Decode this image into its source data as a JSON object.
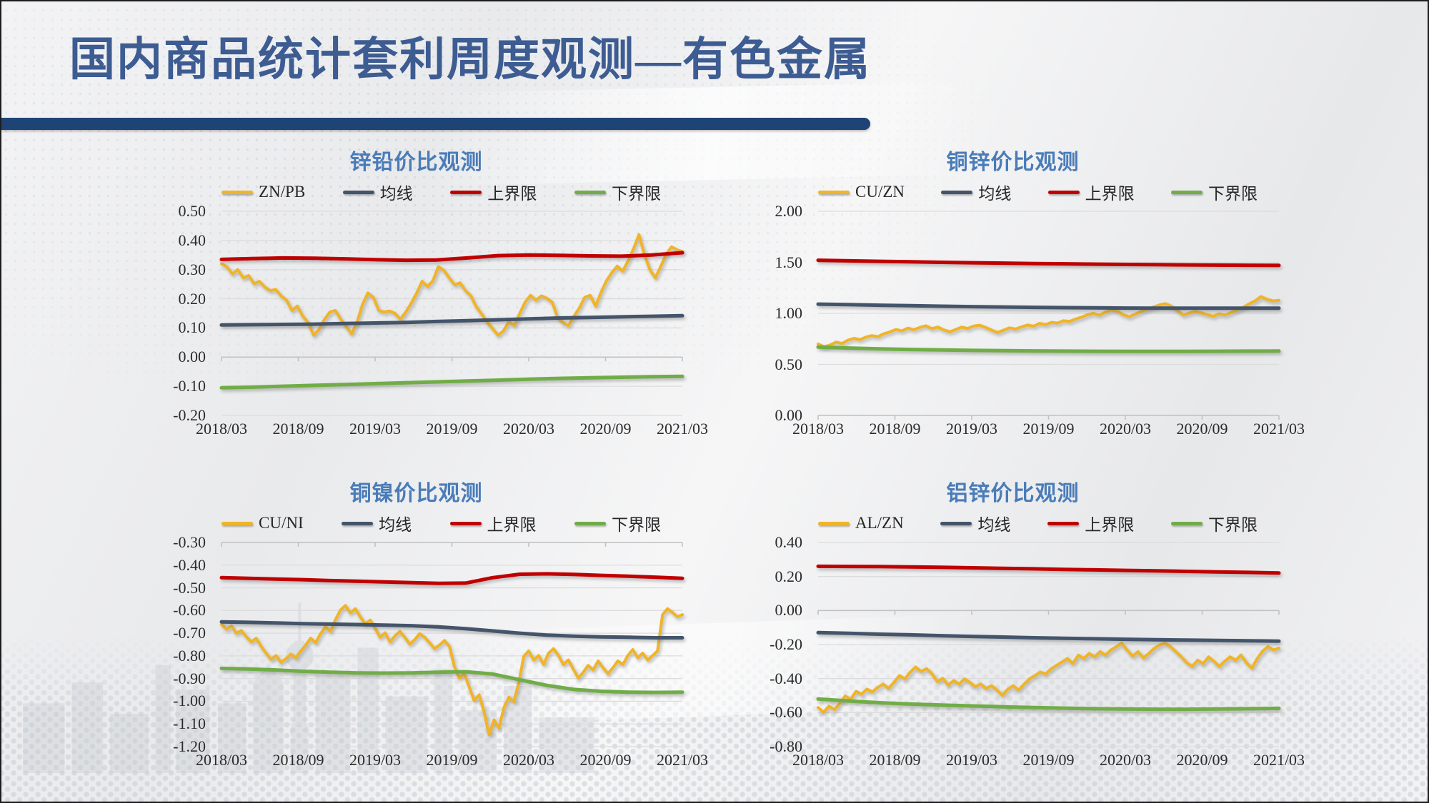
{
  "slide": {
    "title": "国内商品统计套利周度观测—有色金属"
  },
  "theme": {
    "title_color": "#3D5C92",
    "accent_bar": "#1E4475",
    "chart_title": "#4A7CB8",
    "ratio": "#F0B428",
    "mean": "#44546A",
    "upper": "#C00000",
    "lower": "#70AD47",
    "grid": "#DCDCDC",
    "axis": "#C2C2C2"
  },
  "x_categories": [
    "2018/03",
    "2018/09",
    "2019/03",
    "2019/09",
    "2020/03",
    "2020/09",
    "2021/03"
  ],
  "chart_data": [
    {
      "type": "line",
      "title": "锌铅价比观测",
      "ylim": [
        -0.2,
        0.5
      ],
      "yticks": [
        "0.50",
        "0.40",
        "0.30",
        "0.20",
        "0.10",
        "0.00",
        "-0.10",
        "-0.20"
      ],
      "series": [
        {
          "name": "ZN/PB",
          "role": "ratio",
          "width": 4,
          "values": [
            0.32,
            0.31,
            0.285,
            0.3,
            0.272,
            0.28,
            0.252,
            0.26,
            0.24,
            0.228,
            0.232,
            0.21,
            0.195,
            0.16,
            0.175,
            0.14,
            0.118,
            0.075,
            0.095,
            0.13,
            0.155,
            0.16,
            0.13,
            0.105,
            0.08,
            0.12,
            0.18,
            0.22,
            0.205,
            0.16,
            0.155,
            0.158,
            0.15,
            0.13,
            0.155,
            0.185,
            0.22,
            0.26,
            0.242,
            0.262,
            0.31,
            0.298,
            0.272,
            0.248,
            0.255,
            0.228,
            0.21,
            0.172,
            0.148,
            0.12,
            0.098,
            0.075,
            0.09,
            0.122,
            0.108,
            0.15,
            0.188,
            0.212,
            0.195,
            0.21,
            0.202,
            0.188,
            0.135,
            0.118,
            0.108,
            0.14,
            0.168,
            0.205,
            0.212,
            0.175,
            0.222,
            0.262,
            0.29,
            0.312,
            0.295,
            0.33,
            0.372,
            0.42,
            0.352,
            0.3,
            0.272,
            0.31,
            0.352,
            0.378,
            0.368,
            0.362
          ]
        },
        {
          "name": "均线",
          "role": "mean",
          "width": 5,
          "values": [
            0.11,
            0.111,
            0.112,
            0.113,
            0.115,
            0.117,
            0.119,
            0.122,
            0.125,
            0.128,
            0.131,
            0.134,
            0.136,
            0.138,
            0.14,
            0.142
          ]
        },
        {
          "name": "上界限",
          "role": "upper",
          "width": 5,
          "values": [
            0.335,
            0.338,
            0.34,
            0.339,
            0.337,
            0.334,
            0.332,
            0.333,
            0.34,
            0.348,
            0.35,
            0.349,
            0.347,
            0.346,
            0.35,
            0.358
          ]
        },
        {
          "name": "下界限",
          "role": "lower",
          "width": 5,
          "values": [
            -0.105,
            -0.103,
            -0.1,
            -0.097,
            -0.094,
            -0.091,
            -0.088,
            -0.085,
            -0.082,
            -0.079,
            -0.076,
            -0.073,
            -0.071,
            -0.069,
            -0.067,
            -0.066
          ]
        }
      ]
    },
    {
      "type": "line",
      "title": "铜锌价比观测",
      "ylim": [
        0.0,
        2.0
      ],
      "yticks": [
        "2.00",
        "1.50",
        "1.00",
        "0.50",
        "0.00"
      ],
      "series": [
        {
          "name": "CU/ZN",
          "role": "ratio",
          "width": 4,
          "values": [
            0.7,
            0.672,
            0.69,
            0.718,
            0.705,
            0.738,
            0.755,
            0.742,
            0.768,
            0.782,
            0.772,
            0.8,
            0.818,
            0.842,
            0.828,
            0.855,
            0.84,
            0.862,
            0.878,
            0.85,
            0.866,
            0.838,
            0.82,
            0.842,
            0.866,
            0.852,
            0.876,
            0.884,
            0.862,
            0.836,
            0.812,
            0.836,
            0.858,
            0.846,
            0.868,
            0.886,
            0.874,
            0.902,
            0.89,
            0.912,
            0.905,
            0.928,
            0.92,
            0.944,
            0.962,
            0.986,
            1.0,
            0.982,
            1.012,
            1.032,
            1.022,
            0.986,
            0.968,
            0.994,
            1.018,
            1.042,
            1.062,
            1.082,
            1.096,
            1.072,
            1.03,
            0.984,
            1.002,
            1.018,
            1.005,
            0.988,
            0.972,
            0.996,
            0.984,
            1.008,
            1.032,
            1.058,
            1.092,
            1.122,
            1.165,
            1.138,
            1.122,
            1.128
          ]
        },
        {
          "name": "均线",
          "role": "mean",
          "width": 5,
          "values": [
            1.09,
            1.085,
            1.08,
            1.075,
            1.07,
            1.066,
            1.062,
            1.059,
            1.056,
            1.054,
            1.052,
            1.051,
            1.05,
            1.05,
            1.05,
            1.051
          ]
        },
        {
          "name": "上界限",
          "role": "upper",
          "width": 5,
          "values": [
            1.52,
            1.515,
            1.51,
            1.505,
            1.5,
            1.496,
            1.492,
            1.488,
            1.485,
            1.482,
            1.479,
            1.477,
            1.475,
            1.473,
            1.471,
            1.47
          ]
        },
        {
          "name": "下界限",
          "role": "lower",
          "width": 5,
          "values": [
            0.67,
            0.66,
            0.652,
            0.646,
            0.641,
            0.637,
            0.634,
            0.632,
            0.63,
            0.629,
            0.628,
            0.628,
            0.628,
            0.629,
            0.63,
            0.631
          ]
        }
      ]
    },
    {
      "type": "line",
      "title": "铜镍价比观测",
      "ylim": [
        -1.2,
        -0.3
      ],
      "yticks": [
        "-0.30",
        "-0.40",
        "-0.50",
        "-0.60",
        "-0.70",
        "-0.80",
        "-0.90",
        "-1.00",
        "-1.10",
        "-1.20"
      ],
      "series": [
        {
          "name": "CU/NI",
          "role": "ratio",
          "width": 4,
          "values": [
            -0.66,
            -0.682,
            -0.668,
            -0.7,
            -0.688,
            -0.715,
            -0.738,
            -0.722,
            -0.758,
            -0.788,
            -0.815,
            -0.798,
            -0.828,
            -0.812,
            -0.792,
            -0.808,
            -0.778,
            -0.752,
            -0.722,
            -0.742,
            -0.702,
            -0.672,
            -0.692,
            -0.64,
            -0.598,
            -0.578,
            -0.61,
            -0.592,
            -0.628,
            -0.658,
            -0.642,
            -0.678,
            -0.718,
            -0.698,
            -0.738,
            -0.712,
            -0.692,
            -0.718,
            -0.748,
            -0.728,
            -0.702,
            -0.718,
            -0.742,
            -0.768,
            -0.752,
            -0.732,
            -0.758,
            -0.848,
            -0.898,
            -0.878,
            -0.938,
            -0.998,
            -0.972,
            -1.048,
            -1.148,
            -1.082,
            -1.118,
            -1.028,
            -0.982,
            -1.002,
            -0.918,
            -0.802,
            -0.778,
            -0.818,
            -0.798,
            -0.838,
            -0.788,
            -0.768,
            -0.798,
            -0.838,
            -0.818,
            -0.858,
            -0.898,
            -0.872,
            -0.842,
            -0.862,
            -0.822,
            -0.852,
            -0.878,
            -0.852,
            -0.822,
            -0.838,
            -0.798,
            -0.772,
            -0.808,
            -0.788,
            -0.818,
            -0.798,
            -0.778,
            -0.618,
            -0.592,
            -0.608,
            -0.628,
            -0.618
          ]
        },
        {
          "name": "均线",
          "role": "mean",
          "width": 5,
          "values": [
            -0.65,
            -0.652,
            -0.655,
            -0.658,
            -0.66,
            -0.662,
            -0.664,
            -0.667,
            -0.672,
            -0.68,
            -0.69,
            -0.7,
            -0.708,
            -0.713,
            -0.716,
            -0.718,
            -0.72,
            -0.72
          ]
        },
        {
          "name": "上界限",
          "role": "upper",
          "width": 5,
          "values": [
            -0.455,
            -0.458,
            -0.461,
            -0.464,
            -0.468,
            -0.471,
            -0.474,
            -0.477,
            -0.48,
            -0.479,
            -0.455,
            -0.44,
            -0.438,
            -0.441,
            -0.445,
            -0.449,
            -0.453,
            -0.458
          ]
        },
        {
          "name": "下界限",
          "role": "lower",
          "width": 5,
          "values": [
            -0.855,
            -0.858,
            -0.862,
            -0.868,
            -0.872,
            -0.875,
            -0.876,
            -0.875,
            -0.872,
            -0.87,
            -0.88,
            -0.905,
            -0.93,
            -0.948,
            -0.956,
            -0.96,
            -0.961,
            -0.96
          ]
        }
      ]
    },
    {
      "type": "line",
      "title": "铝锌价比观测",
      "ylim": [
        -0.8,
        0.4
      ],
      "yticks": [
        "0.40",
        "0.20",
        "0.00",
        "-0.20",
        "-0.40",
        "-0.60",
        "-0.80"
      ],
      "series": [
        {
          "name": "AL/ZN",
          "role": "ratio",
          "width": 4,
          "values": [
            -0.57,
            -0.598,
            -0.562,
            -0.582,
            -0.545,
            -0.502,
            -0.522,
            -0.475,
            -0.492,
            -0.462,
            -0.478,
            -0.452,
            -0.432,
            -0.458,
            -0.422,
            -0.382,
            -0.402,
            -0.362,
            -0.332,
            -0.358,
            -0.342,
            -0.372,
            -0.418,
            -0.398,
            -0.438,
            -0.412,
            -0.432,
            -0.402,
            -0.422,
            -0.448,
            -0.432,
            -0.458,
            -0.442,
            -0.468,
            -0.498,
            -0.462,
            -0.442,
            -0.468,
            -0.432,
            -0.402,
            -0.382,
            -0.362,
            -0.372,
            -0.342,
            -0.322,
            -0.302,
            -0.282,
            -0.312,
            -0.262,
            -0.282,
            -0.252,
            -0.272,
            -0.242,
            -0.262,
            -0.232,
            -0.212,
            -0.192,
            -0.232,
            -0.268,
            -0.242,
            -0.278,
            -0.252,
            -0.222,
            -0.202,
            -0.192,
            -0.212,
            -0.242,
            -0.272,
            -0.308,
            -0.328,
            -0.292,
            -0.312,
            -0.272,
            -0.298,
            -0.328,
            -0.298,
            -0.272,
            -0.292,
            -0.262,
            -0.308,
            -0.338,
            -0.282,
            -0.238,
            -0.212,
            -0.232,
            -0.222
          ]
        },
        {
          "name": "均线",
          "role": "mean",
          "width": 5,
          "values": [
            -0.13,
            -0.134,
            -0.139,
            -0.143,
            -0.148,
            -0.152,
            -0.156,
            -0.16,
            -0.163,
            -0.166,
            -0.169,
            -0.172,
            -0.174,
            -0.176,
            -0.178,
            -0.18
          ]
        },
        {
          "name": "上界限",
          "role": "upper",
          "width": 5,
          "values": [
            0.26,
            0.259,
            0.258,
            0.256,
            0.254,
            0.251,
            0.248,
            0.245,
            0.242,
            0.239,
            0.236,
            0.233,
            0.23,
            0.227,
            0.224,
            0.221
          ]
        },
        {
          "name": "下界限",
          "role": "lower",
          "width": 5,
          "values": [
            -0.52,
            -0.532,
            -0.542,
            -0.55,
            -0.556,
            -0.561,
            -0.566,
            -0.57,
            -0.574,
            -0.577,
            -0.579,
            -0.58,
            -0.58,
            -0.579,
            -0.577,
            -0.575
          ]
        }
      ]
    }
  ]
}
